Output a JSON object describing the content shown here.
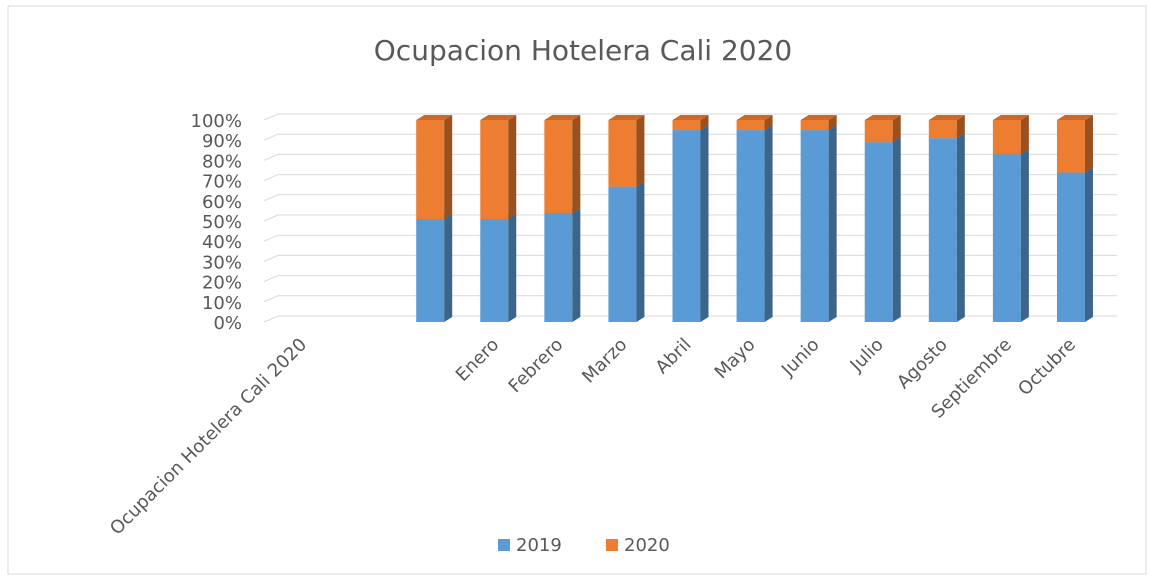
{
  "chart_data": {
    "type": "bar",
    "stacked": true,
    "title": "Ocupacion Hotelera Cali 2020",
    "categories": [
      "Ocupacion Hotelera Cali 2020",
      null,
      null,
      "Enero",
      "Febrero",
      "Marzo",
      "Abril",
      "Mayo",
      "Junio",
      "Julio",
      "Agosto",
      "Septiembre",
      "Octubre"
    ],
    "series": [
      {
        "name": "2019",
        "color": "#5b9bd5",
        "values": [
          null,
          null,
          51,
          51,
          54,
          67,
          95,
          95,
          95,
          89,
          91,
          83,
          74
        ]
      },
      {
        "name": "2020",
        "color": "#ed7d31",
        "values": [
          null,
          null,
          49,
          49,
          46,
          33,
          5,
          5,
          5,
          11,
          9,
          17,
          26
        ]
      }
    ],
    "ylim": [
      0,
      100
    ],
    "yticks": [
      {
        "value": 0,
        "label": "0%"
      },
      {
        "value": 10,
        "label": "10%"
      },
      {
        "value": 20,
        "label": "20%"
      },
      {
        "value": 30,
        "label": "30%"
      },
      {
        "value": 40,
        "label": "40%"
      },
      {
        "value": 50,
        "label": "50%"
      },
      {
        "value": 60,
        "label": "60%"
      },
      {
        "value": 70,
        "label": "70%"
      },
      {
        "value": 80,
        "label": "80%"
      },
      {
        "value": 90,
        "label": "90%"
      },
      {
        "value": 100,
        "label": "100%"
      }
    ],
    "grid": true,
    "legend": "bottom"
  }
}
